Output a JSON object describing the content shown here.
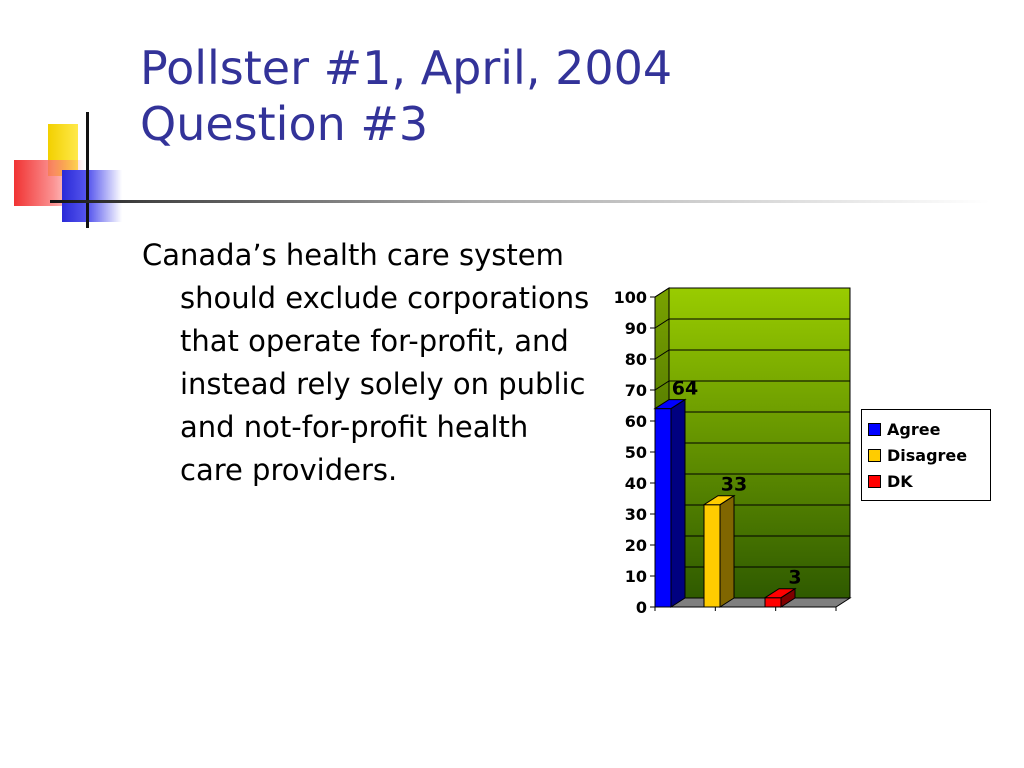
{
  "slide": {
    "title_line1": "Pollster #1, April, 2004",
    "title_line2": "Question #3",
    "body": "Canada’s health care system should exclude corporations that operate for-profit, and instead rely solely on public and not-for-profit health care providers."
  },
  "chart_data": {
    "type": "bar",
    "title": "",
    "xlabel": "",
    "ylabel": "",
    "ylim": [
      0,
      100
    ],
    "yticks": [
      0,
      10,
      20,
      30,
      40,
      50,
      60,
      70,
      80,
      90,
      100
    ],
    "grid": true,
    "three_d": true,
    "plot_background": "gradient #99cc00 to #2f5a00",
    "legend_position": "right",
    "series": [
      {
        "name": "Agree",
        "value": 64,
        "color": "#0000ff",
        "side_color": "#000080"
      },
      {
        "name": "Disagree",
        "value": 33,
        "color": "#ffcc00",
        "side_color": "#806600"
      },
      {
        "name": "DK",
        "value": 3,
        "color": "#ff0000",
        "side_color": "#800000"
      }
    ]
  }
}
